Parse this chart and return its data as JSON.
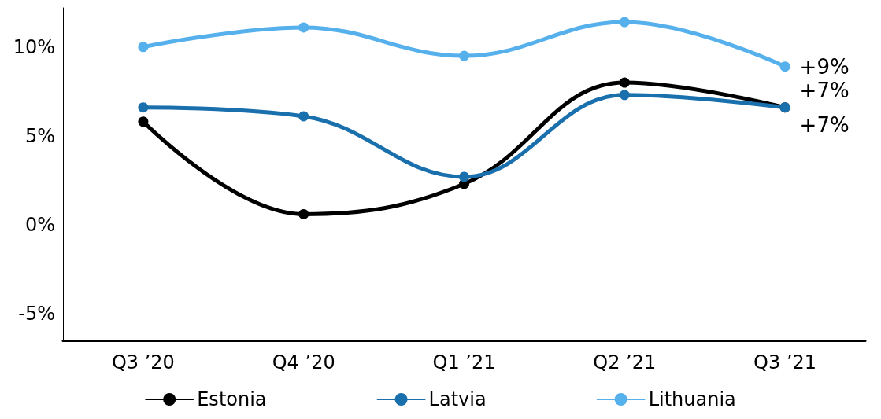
{
  "chart_data": {
    "type": "line",
    "categories": [
      "Q3 ’20",
      "Q4 ’20",
      "Q1 ’21",
      "Q2 ’21",
      "Q3 ’21"
    ],
    "series": [
      {
        "name": "Estonia",
        "color": "#000000",
        "values": [
          5.8,
          0.6,
          2.3,
          8.0,
          6.6
        ],
        "value_labels": [
          null,
          null,
          null,
          null,
          "+7%"
        ]
      },
      {
        "name": "Latvia",
        "color": "#1a6fad",
        "values": [
          6.6,
          6.1,
          2.7,
          7.3,
          6.6
        ],
        "value_labels": [
          null,
          null,
          null,
          null,
          "+7%"
        ]
      },
      {
        "name": "Lithuania",
        "color": "#56b0ec",
        "values": [
          10.0,
          11.1,
          9.5,
          11.4,
          8.9
        ],
        "value_labels": [
          null,
          null,
          null,
          null,
          "+9%"
        ]
      }
    ],
    "ylim": [
      -6.5,
      12.2
    ],
    "yticks": [
      {
        "value": -5,
        "label": "-5%"
      },
      {
        "value": 0,
        "label": "0%"
      },
      {
        "value": 5,
        "label": "5%"
      },
      {
        "value": 10,
        "label": "10%"
      }
    ],
    "grid": false,
    "legend": "bottom",
    "marker": "circle",
    "line_style": "solid"
  }
}
